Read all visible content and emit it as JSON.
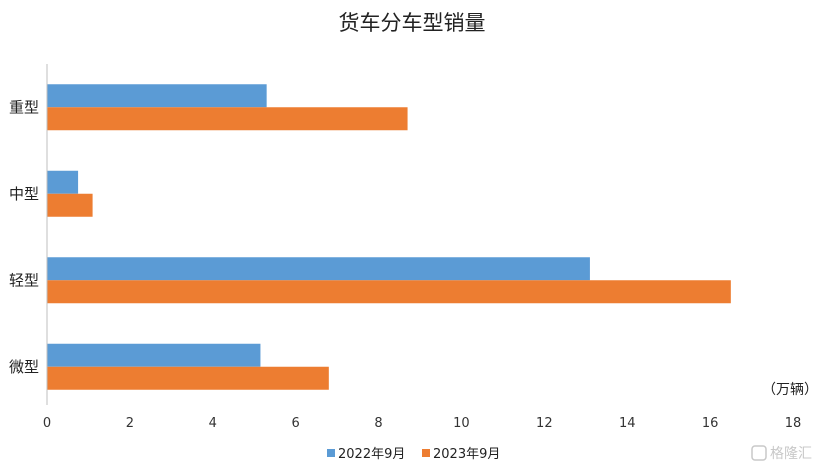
{
  "chart_data": {
    "type": "bar",
    "orientation": "horizontal",
    "title": "货车分车型销量",
    "unit_label": "（万辆）",
    "categories": [
      "重型",
      "中型",
      "轻型",
      "微型"
    ],
    "series": [
      {
        "name": "2022年9月",
        "color": "#5b9bd5",
        "values": [
          5.3,
          0.75,
          13.1,
          5.15
        ]
      },
      {
        "name": "2023年9月",
        "color": "#ed7d31",
        "values": [
          8.7,
          1.1,
          16.5,
          6.8
        ]
      }
    ],
    "xlim": [
      0,
      18
    ],
    "x_ticks": [
      0,
      2,
      4,
      6,
      8,
      10,
      12,
      14,
      16,
      18
    ],
    "grid": false,
    "legend_position": "bottom"
  },
  "watermark": "格隆汇"
}
